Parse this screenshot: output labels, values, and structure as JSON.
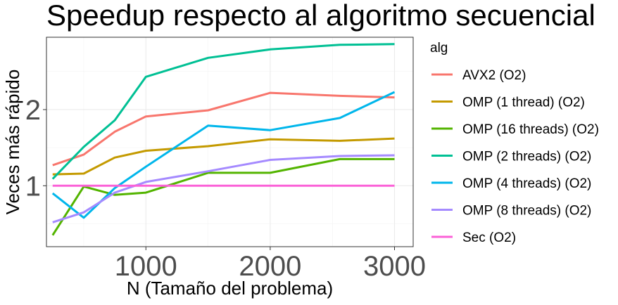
{
  "chart_data": {
    "type": "line",
    "title": "Speedup respecto al algoritmo secuencial",
    "xlabel": "N (Tamaño del problema)",
    "ylabel": "Veces más rápido",
    "xlim": [
      200,
      3150
    ],
    "ylim": [
      0.2,
      2.95
    ],
    "x_ticks": [
      {
        "value": 1000,
        "label": "1000"
      },
      {
        "value": 2000,
        "label": "2000"
      },
      {
        "value": 3000,
        "label": "3000"
      }
    ],
    "y_ticks": [
      {
        "value": 1,
        "label": "1"
      },
      {
        "value": 2,
        "label": "2"
      }
    ],
    "x_minor": [
      500,
      1500,
      2500
    ],
    "y_minor": [
      0.5,
      1.5,
      2.5
    ],
    "grid": true,
    "legend": {
      "title": "alg",
      "position": "right"
    },
    "x": [
      250,
      500,
      750,
      1000,
      1500,
      2000,
      2560,
      3000
    ],
    "series": [
      {
        "name": "AVX2 (O2)",
        "color": "#F8766D",
        "values": [
          1.27,
          1.41,
          1.71,
          1.91,
          1.99,
          2.22,
          2.18,
          2.16
        ]
      },
      {
        "name": "OMP (1 thread) (O2)",
        "color": "#C49A00",
        "values": [
          1.15,
          1.16,
          1.37,
          1.46,
          1.52,
          1.61,
          1.59,
          1.62
        ]
      },
      {
        "name": "OMP (16 threads) (O2)",
        "color": "#53B400",
        "values": [
          0.35,
          0.99,
          0.88,
          0.91,
          1.17,
          1.17,
          1.35,
          1.35
        ]
      },
      {
        "name": "OMP (2 threads) (O2)",
        "color": "#00C094",
        "values": [
          1.09,
          1.51,
          1.86,
          2.43,
          2.68,
          2.79,
          2.85,
          2.86
        ]
      },
      {
        "name": "OMP (4 threads) (O2)",
        "color": "#00B6EB",
        "values": [
          0.9,
          0.58,
          0.97,
          1.25,
          1.79,
          1.73,
          1.89,
          2.23
        ]
      },
      {
        "name": "OMP (8 threads) (O2)",
        "color": "#A58AFF",
        "values": [
          0.52,
          0.65,
          0.91,
          1.05,
          1.19,
          1.34,
          1.39,
          1.4
        ]
      },
      {
        "name": "Sec (O2)",
        "color": "#FB61D7",
        "values": [
          1.0,
          1.0,
          1.0,
          1.0,
          1.0,
          1.0,
          1.0,
          1.0
        ]
      }
    ]
  }
}
